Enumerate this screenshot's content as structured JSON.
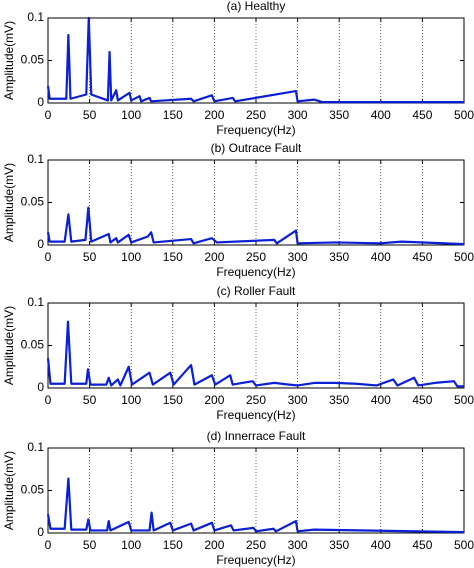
{
  "chart_data": [
    {
      "type": "line",
      "title": "(a) Healthy",
      "x_label": "Frequency(Hz)",
      "y_label": "Amplitude(mV)",
      "color": "#0a1fd6",
      "xlim": [
        0,
        500
      ],
      "xticks": [
        0,
        50,
        100,
        150,
        200,
        250,
        300,
        350,
        400,
        450,
        500
      ],
      "ylim": [
        0,
        0.1
      ],
      "yticks": [
        0,
        0.05,
        0.1
      ],
      "grid": "x",
      "x": [
        0,
        2,
        22,
        24.5,
        27,
        46,
        49,
        52,
        72,
        74,
        76,
        82,
        84,
        98,
        100,
        110,
        112,
        122,
        124,
        172,
        175,
        197,
        200,
        222,
        225,
        298,
        300,
        320,
        330,
        500
      ],
      "values": [
        0.02,
        0.005,
        0.005,
        0.08,
        0.005,
        0.01,
        0.1,
        0.01,
        0.003,
        0.06,
        0.003,
        0.015,
        0.003,
        0.012,
        0.003,
        0.008,
        0.002,
        0.006,
        0.002,
        0.005,
        0.002,
        0.009,
        0.002,
        0.006,
        0.002,
        0.014,
        0.002,
        0.004,
        0.001,
        0.001
      ]
    },
    {
      "type": "line",
      "title": "(b) Outrace Fault",
      "x_label": "Frequency(Hz)",
      "y_label": "Amplitude(mV)",
      "color": "#0a1fd6",
      "xlim": [
        0,
        500
      ],
      "xticks": [
        0,
        50,
        100,
        150,
        200,
        250,
        300,
        350,
        400,
        450,
        500
      ],
      "ylim": [
        0,
        0.1
      ],
      "yticks": [
        0,
        0.05,
        0.1
      ],
      "grid": "x",
      "x": [
        0,
        2,
        20,
        24.5,
        28,
        45,
        48.5,
        52,
        73,
        75,
        82,
        84,
        97,
        100,
        120,
        124,
        127,
        172,
        175,
        197,
        203,
        272,
        275,
        298,
        300,
        345,
        400,
        425,
        500
      ],
      "values": [
        0.015,
        0.004,
        0.004,
        0.036,
        0.004,
        0.006,
        0.044,
        0.004,
        0.013,
        0.003,
        0.008,
        0.003,
        0.012,
        0.003,
        0.01,
        0.015,
        0.003,
        0.007,
        0.002,
        0.008,
        0.003,
        0.006,
        0.002,
        0.017,
        0.002,
        0.003,
        0.002,
        0.004,
        0.001
      ]
    },
    {
      "type": "line",
      "title": "(c) Roller Fault",
      "x_label": "Frequency(Hz)",
      "y_label": "Amplitude(mV)",
      "color": "#0a1fd6",
      "xlim": [
        0,
        500
      ],
      "xticks": [
        0,
        50,
        100,
        150,
        200,
        250,
        300,
        350,
        400,
        450,
        500
      ],
      "ylim": [
        0,
        0.1
      ],
      "yticks": [
        0,
        0.05,
        0.1
      ],
      "grid": "x",
      "x": [
        0,
        3,
        20,
        24,
        28,
        46,
        48,
        51,
        70,
        73,
        76,
        84,
        87,
        97,
        101,
        122,
        126,
        147,
        151,
        172,
        176,
        197,
        201,
        219,
        222,
        246,
        250,
        272,
        290,
        300,
        320,
        345,
        370,
        395,
        415,
        420,
        440,
        445,
        465,
        488,
        492,
        500
      ],
      "values": [
        0.035,
        0.005,
        0.005,
        0.078,
        0.005,
        0.005,
        0.022,
        0.004,
        0.004,
        0.012,
        0.003,
        0.01,
        0.003,
        0.025,
        0.004,
        0.018,
        0.004,
        0.018,
        0.004,
        0.027,
        0.004,
        0.015,
        0.004,
        0.015,
        0.004,
        0.008,
        0.003,
        0.006,
        0.004,
        0.003,
        0.006,
        0.006,
        0.005,
        0.003,
        0.01,
        0.003,
        0.012,
        0.003,
        0.006,
        0.008,
        0.002,
        0.002
      ]
    },
    {
      "type": "line",
      "title": "(d) Innerrace Fault",
      "x_label": "Frequency(Hz)",
      "y_label": "Amplitude(mV)",
      "color": "#0a1fd6",
      "xlim": [
        0,
        500
      ],
      "xticks": [
        0,
        50,
        100,
        150,
        200,
        250,
        300,
        350,
        400,
        450,
        500
      ],
      "ylim": [
        0,
        0.1
      ],
      "yticks": [
        0,
        0.05,
        0.1
      ],
      "grid": "x",
      "x": [
        0,
        3,
        20,
        24.5,
        28,
        46,
        48.5,
        51,
        71,
        73,
        75,
        97,
        100,
        122,
        124.5,
        127,
        147,
        150,
        172,
        175,
        197,
        200,
        220,
        223,
        247,
        250,
        271,
        274,
        298,
        300,
        320,
        500
      ],
      "values": [
        0.022,
        0.005,
        0.005,
        0.064,
        0.004,
        0.004,
        0.016,
        0.003,
        0.003,
        0.014,
        0.003,
        0.013,
        0.003,
        0.003,
        0.024,
        0.003,
        0.012,
        0.003,
        0.011,
        0.003,
        0.012,
        0.003,
        0.009,
        0.003,
        0.006,
        0.002,
        0.005,
        0.002,
        0.014,
        0.002,
        0.004,
        0.001
      ]
    }
  ]
}
